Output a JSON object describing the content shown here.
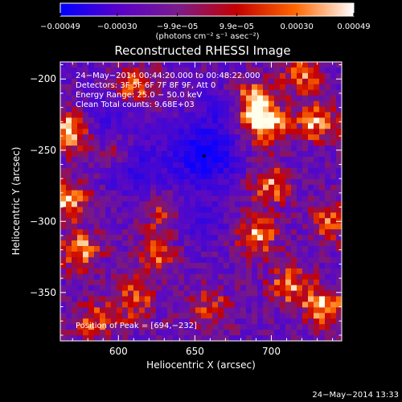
{
  "chart_data": {
    "type": "heatmap",
    "title": "Reconstructed RHESSI Image",
    "xlabel": "Heliocentric X (arcsec)",
    "ylabel": "Heliocentric Y (arcsec)",
    "xlim": [
      562,
      746
    ],
    "ylim": [
      -384,
      -188
    ],
    "x_ticks": [
      600,
      650,
      700
    ],
    "y_ticks": [
      -350,
      -300,
      -250,
      -200
    ],
    "x_tick_labels": [
      "600",
      "650",
      "700"
    ],
    "y_tick_labels": [
      "−350",
      "−300",
      "−250",
      "−200"
    ],
    "colorbar": {
      "min": -0.00049,
      "max": 0.00049,
      "ticks": [
        -0.00049,
        -0.0003,
        -9.9e-05,
        9.9e-05,
        0.0003,
        0.00049
      ],
      "tick_labels": [
        "−0.00049",
        "−0.00030",
        "−9.9e−05",
        "9.9e−05",
        "0.00030",
        "0.00049"
      ],
      "units": "(photons cm⁻² s⁻¹ asec⁻²)",
      "colormap": [
        "#0000ff",
        "#5a00c8",
        "#7a1c8c",
        "#c40000",
        "#ff6600",
        "#ffffff"
      ]
    },
    "annotations": [
      "24−May−2014 00:44:20.000 to 00:48:22.000",
      "Detectors: 3F 5F 6F 7F 8F 9F, Att 0",
      "Energy Range: 25.0 − 50.0 keV",
      "Clean     Total counts: 9.68E+03"
    ],
    "peak_label": "Position of Peak = [694,−232]",
    "peak": [
      694,
      -232
    ],
    "marker": [
      656,
      -254
    ],
    "hot_spots": [
      {
        "x": 568,
        "y": -236,
        "level": 0.9
      },
      {
        "x": 566,
        "y": -284,
        "level": 0.85
      },
      {
        "x": 575,
        "y": -320,
        "level": 0.7
      },
      {
        "x": 610,
        "y": -205,
        "level": 0.75
      },
      {
        "x": 688,
        "y": -215,
        "level": 0.8
      },
      {
        "x": 695,
        "y": -232,
        "level": 1.0
      },
      {
        "x": 730,
        "y": -230,
        "level": 0.75
      },
      {
        "x": 630,
        "y": -295,
        "level": 0.6
      },
      {
        "x": 700,
        "y": -275,
        "level": 0.65
      },
      {
        "x": 690,
        "y": -310,
        "level": 0.7
      },
      {
        "x": 740,
        "y": -300,
        "level": 0.6
      },
      {
        "x": 735,
        "y": -360,
        "level": 0.8
      },
      {
        "x": 712,
        "y": -345,
        "level": 0.65
      },
      {
        "x": 610,
        "y": -355,
        "level": 0.6
      },
      {
        "x": 585,
        "y": -370,
        "level": 0.55
      },
      {
        "x": 660,
        "y": -360,
        "level": 0.5
      },
      {
        "x": 625,
        "y": -325,
        "level": 0.55
      },
      {
        "x": 720,
        "y": -198,
        "level": 0.6
      },
      {
        "x": 600,
        "y": -250,
        "level": 0.45
      }
    ],
    "cold_spots": [
      {
        "x": 656,
        "y": -254,
        "level": 1.0
      },
      {
        "x": 612,
        "y": -262,
        "level": 0.55
      },
      {
        "x": 595,
        "y": -225,
        "level": 0.45
      },
      {
        "x": 650,
        "y": -300,
        "level": 0.35
      },
      {
        "x": 665,
        "y": -225,
        "level": 0.35
      }
    ]
  },
  "timestamp": "24−May−2014 13:33"
}
